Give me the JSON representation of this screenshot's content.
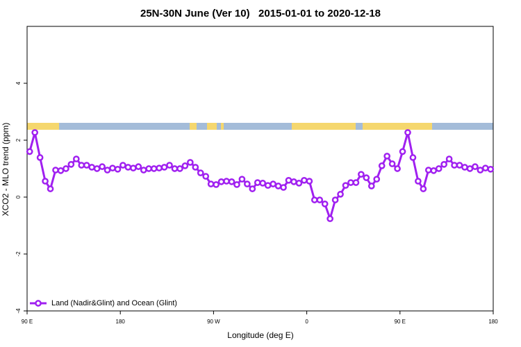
{
  "chart_data": {
    "type": "line",
    "title": "25N-30N June (Ver 10)   2015-01-01 to 2020-12-18",
    "x_label": "Longitude (deg E)",
    "y_label": "XCO2 - MLO trend (ppm)",
    "x": [
      92.5,
      97.5,
      102.5,
      107.5,
      112.5,
      117.5,
      122.5,
      127.5,
      132.5,
      137.5,
      142.5,
      147.5,
      152.5,
      157.5,
      162.5,
      167.5,
      172.5,
      177.5,
      182.5,
      187.5,
      192.5,
      197.5,
      202.5,
      207.5,
      212.5,
      217.5,
      222.5,
      227.5,
      232.5,
      237.5,
      242.5,
      247.5,
      252.5,
      257.5,
      262.5,
      267.5,
      272.5,
      277.5,
      282.5,
      287.5,
      292.5,
      297.5,
      302.5,
      307.5,
      312.5,
      317.5,
      322.5,
      327.5,
      332.5,
      337.5,
      342.5,
      347.5,
      352.5,
      357.5,
      362.5,
      367.5,
      372.5,
      377.5,
      382.5,
      387.5,
      392.5,
      397.5,
      402.5,
      407.5,
      412.5,
      417.5,
      422.5,
      427.5,
      432.5,
      437.5,
      442.5,
      447.5,
      452.5,
      457.5,
      462.5,
      467.5,
      472.5,
      477.5,
      482.5,
      487.5,
      492.5,
      497.5,
      502.5,
      507.5,
      512.5,
      517.5,
      522.5,
      527.5,
      532.5,
      537.5
    ],
    "series": [
      {
        "name": "Land (Nadir&Glint) and Ocean (Glint)",
        "color": "#a020f0",
        "values": [
          1.6,
          2.27,
          1.39,
          0.56,
          0.29,
          0.95,
          0.93,
          1.0,
          1.15,
          1.34,
          1.12,
          1.12,
          1.05,
          1.0,
          1.07,
          0.95,
          1.02,
          0.98,
          1.12,
          1.05,
          1.02,
          1.07,
          0.95,
          1.0,
          1.0,
          1.02,
          1.05,
          1.12,
          1.0,
          1.0,
          1.1,
          1.22,
          1.05,
          0.85,
          0.73,
          0.46,
          0.44,
          0.54,
          0.56,
          0.54,
          0.44,
          0.63,
          0.46,
          0.29,
          0.51,
          0.49,
          0.41,
          0.46,
          0.39,
          0.34,
          0.59,
          0.54,
          0.49,
          0.59,
          0.56,
          -0.1,
          -0.1,
          -0.24,
          -0.76,
          -0.1,
          0.1,
          0.41,
          0.51,
          0.51,
          0.8,
          0.68,
          0.39,
          0.63,
          1.1,
          1.44,
          1.17,
          1.0,
          1.6,
          2.27,
          1.39,
          0.56,
          0.29,
          0.95,
          0.93,
          1.0,
          1.15,
          1.34,
          1.12,
          1.12,
          1.05,
          1.0,
          1.07,
          0.95,
          1.02,
          0.98
        ]
      }
    ],
    "xlim": [
      90,
      540
    ],
    "xticks": [
      {
        "value": 90,
        "label": "90 E"
      },
      180,
      {
        "value": 270,
        "label": "90 W"
      },
      {
        "value": 360,
        "label": "0"
      },
      {
        "value": 450,
        "label": "90 E"
      },
      {
        "value": 540,
        "label": "180"
      }
    ],
    "ylim": [
      -4,
      6
    ],
    "yticks": [
      -4,
      -2,
      0,
      2,
      4
    ],
    "legend": "bottom-left"
  }
}
